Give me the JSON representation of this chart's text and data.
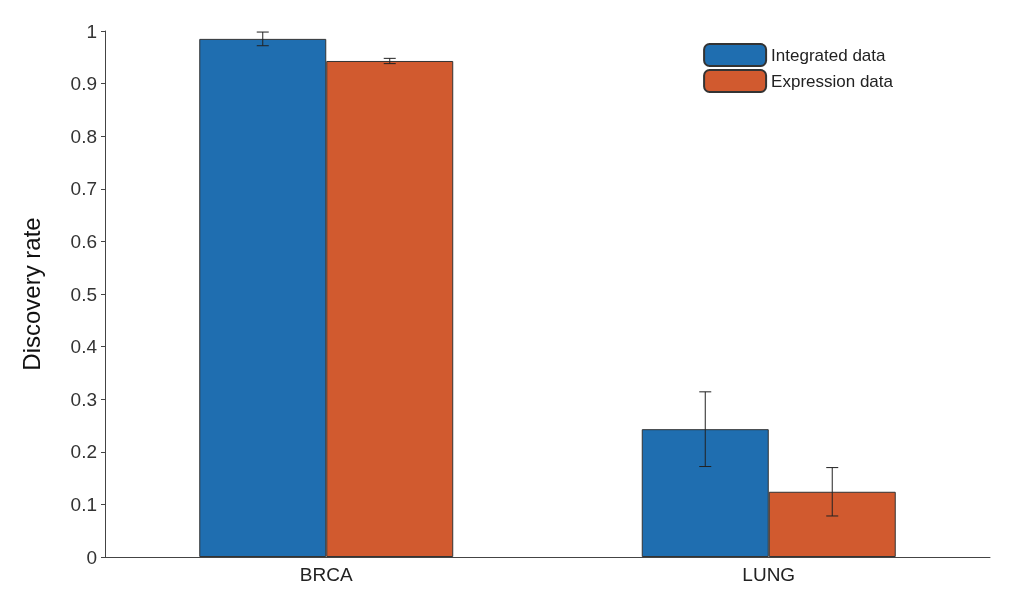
{
  "chart_data": {
    "type": "bar",
    "ylabel": "Discovery rate",
    "categories": [
      "BRCA",
      "LUNG"
    ],
    "series": [
      {
        "name": "Integrated data",
        "color": "#1f6eb0",
        "values": [
          0.985,
          0.243
        ],
        "errors": [
          0.013,
          0.071
        ]
      },
      {
        "name": "Expression data",
        "color": "#d15a2f",
        "values": [
          0.943,
          0.124
        ],
        "errors": [
          0.005,
          0.046
        ]
      }
    ],
    "ylim": [
      0,
      1
    ],
    "yticks": [
      0,
      0.1,
      0.2,
      0.3,
      0.4,
      0.5,
      0.6,
      0.7,
      0.8,
      0.9,
      1
    ],
    "grid": false,
    "legend": "top right"
  }
}
